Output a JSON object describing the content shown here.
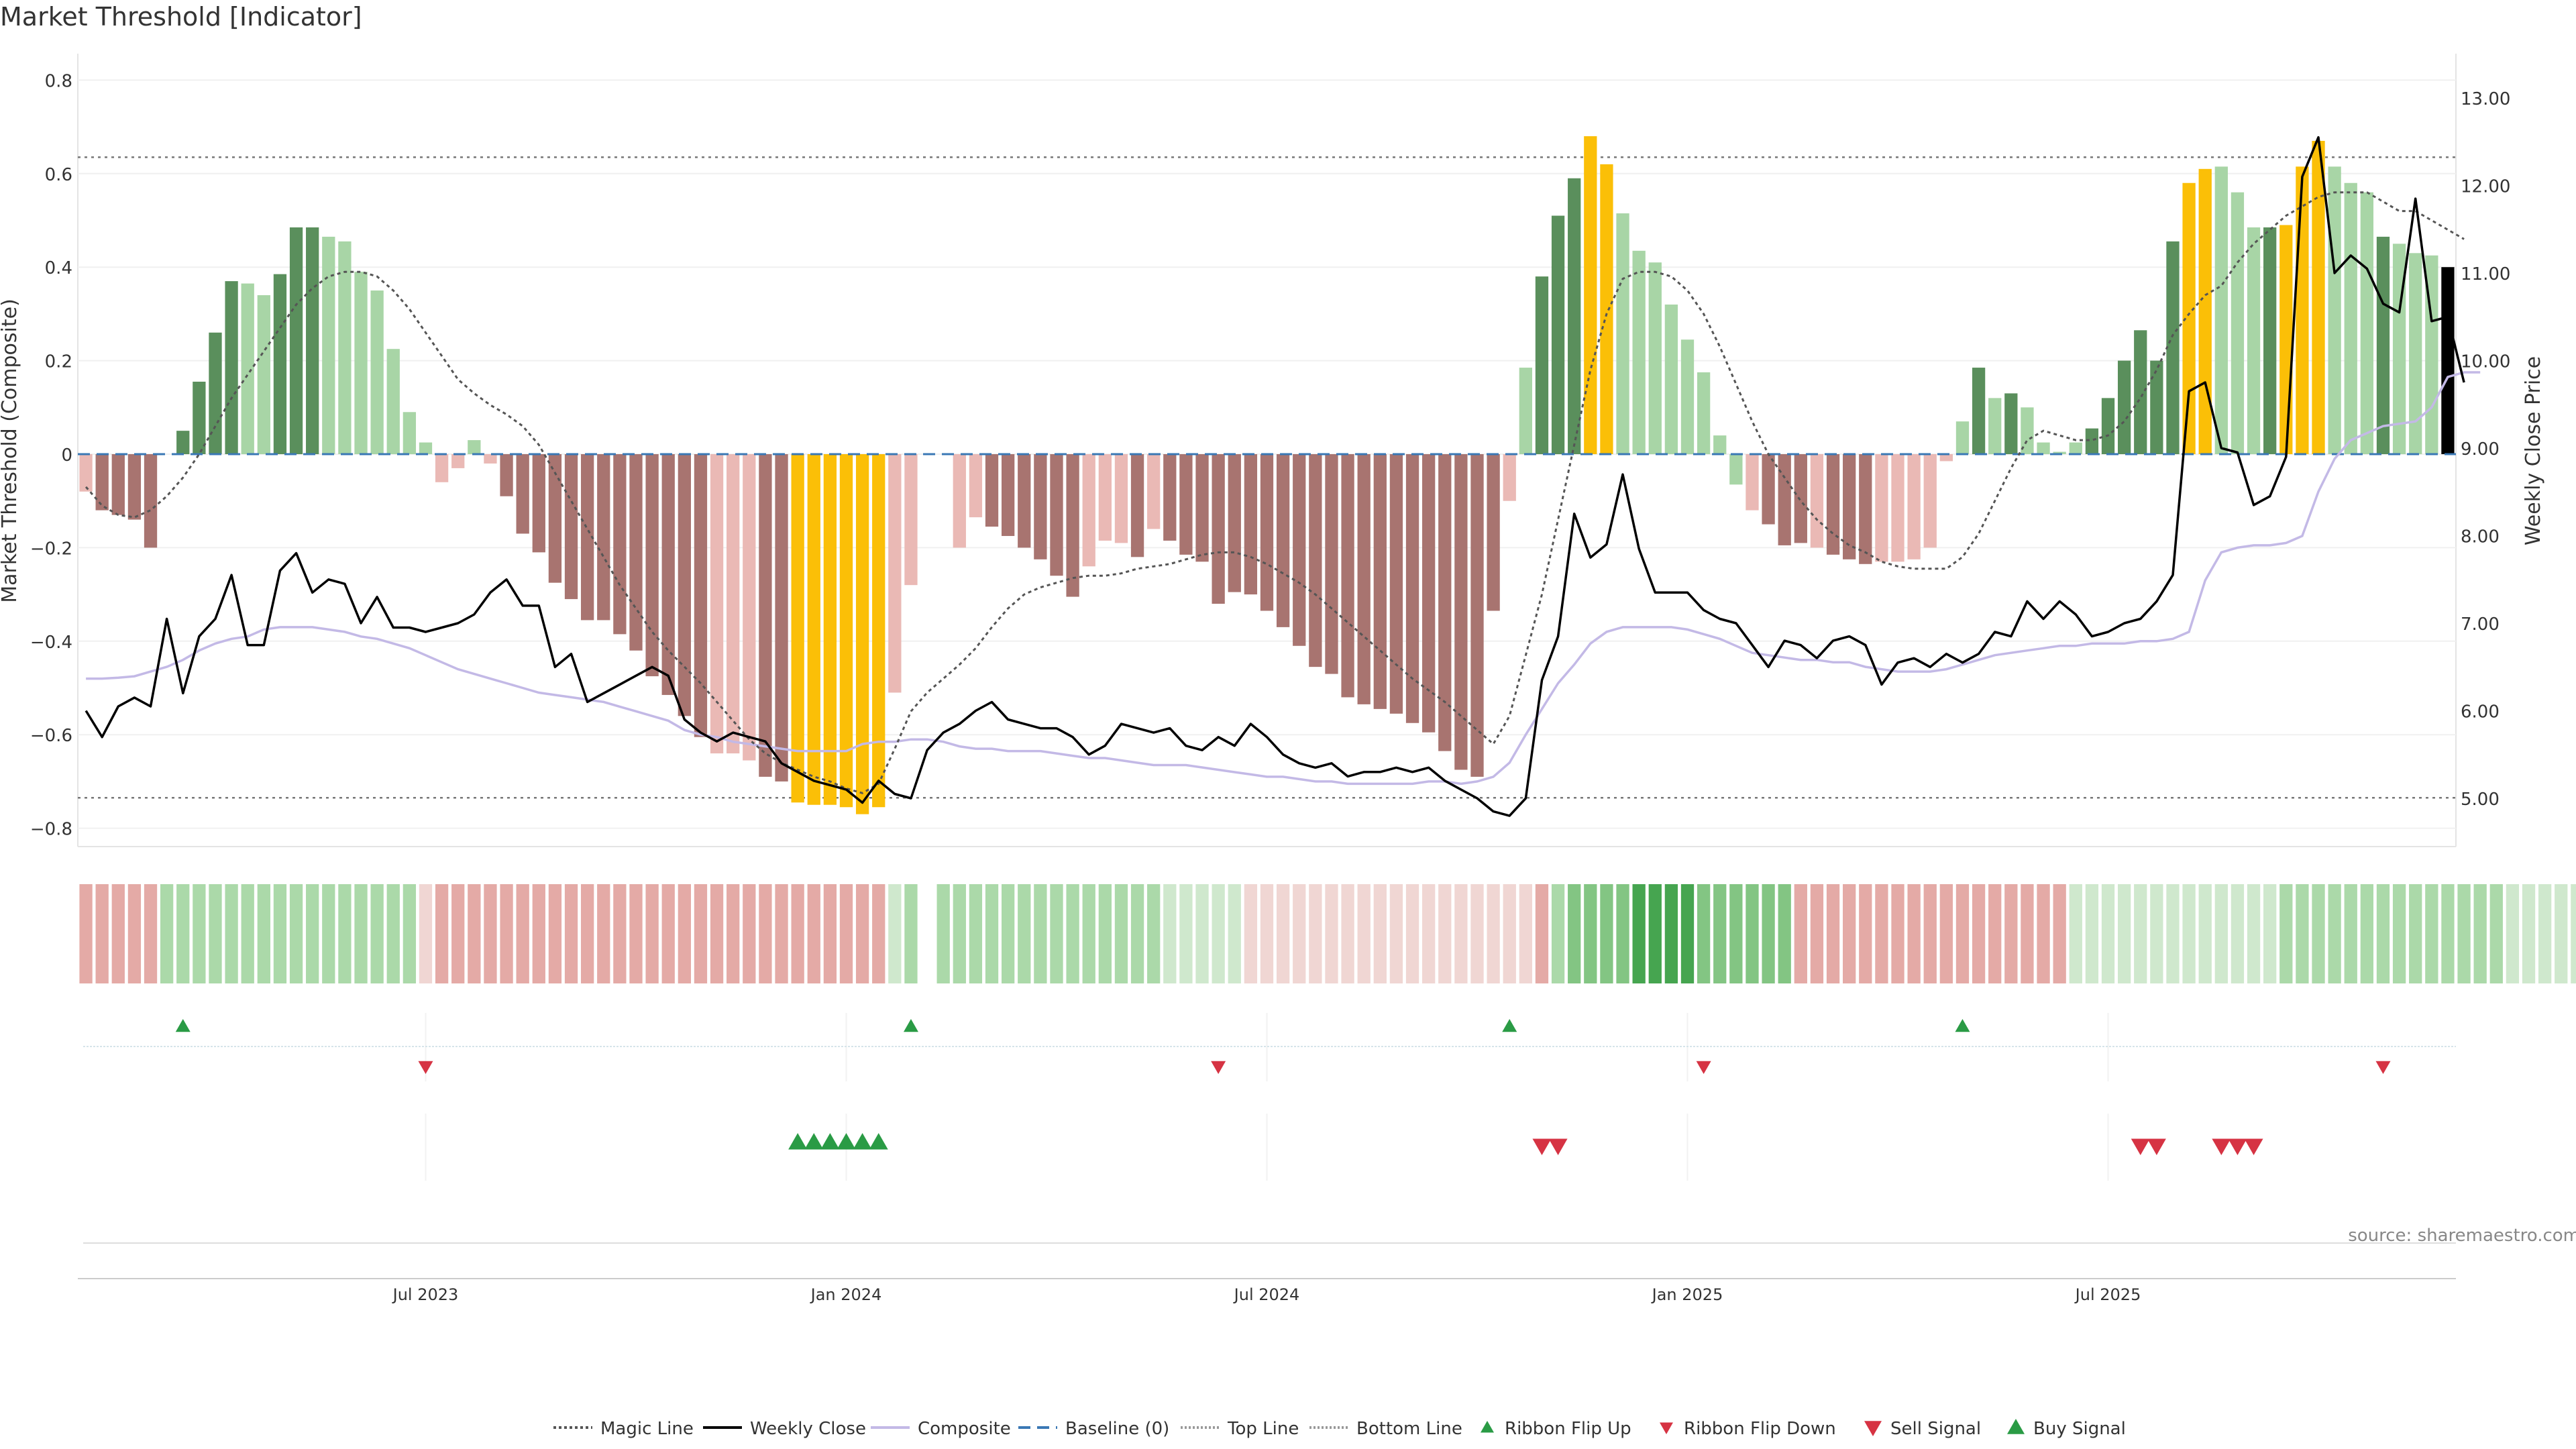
{
  "chart_data": {
    "type": "bar",
    "title": "Market Threshold [Indicator]",
    "ylabel_left": "Market Threshold (Composite)",
    "ylabel_right": "Weekly Close Price",
    "yticks_left": [
      "0.8",
      "0.6",
      "0.4",
      "0.2",
      "0",
      "−0.2",
      "−0.4",
      "−0.6",
      "−0.8"
    ],
    "yticks_right": [
      "13.00",
      "12.00",
      "11.00",
      "10.00",
      "9.00",
      "8.00",
      "7.00",
      "6.00",
      "5.00"
    ],
    "xticks": [
      "Jul 2023",
      "Jan 2024",
      "Jul 2024",
      "Jan 2025",
      "Jul 2025"
    ],
    "ylim_left": [
      -0.85,
      0.85
    ],
    "ylim_right": [
      4.6,
      13.3
    ],
    "top_line": 0.635,
    "bottom_line": -0.735,
    "source": "source: sharemaestro.com",
    "legend": [
      "Magic Line",
      "Weekly Close",
      "Composite",
      "Baseline (0)",
      "Top Line",
      "Bottom Line",
      "Ribbon Flip Up",
      "Ribbon Flip Down",
      "Sell Signal",
      "Buy Signal"
    ],
    "colors": {
      "dark_green": "#5a8f5c",
      "light_green": "#a8d5a6",
      "dark_red": "#a87470",
      "light_red": "#eab9b5",
      "gold": "#fbbf07",
      "close_line": "#000000",
      "composite_line": "#c3b9e6",
      "magic_line": "#555555",
      "baseline": "#3a78b5",
      "signal_green": "#2a9b45",
      "signal_red": "#d63343"
    },
    "bar_values": [
      -0.08,
      -0.12,
      -0.13,
      -0.14,
      -0.2,
      0,
      0.05,
      0.155,
      0.26,
      0.37,
      0.365,
      0.34,
      0.385,
      0.485,
      0.485,
      0.465,
      0.455,
      0.39,
      0.35,
      0.225,
      0.09,
      0.025,
      -0.06,
      -0.03,
      0.03,
      -0.02,
      -0.09,
      -0.17,
      -0.21,
      -0.275,
      -0.31,
      -0.355,
      -0.355,
      -0.385,
      -0.42,
      -0.475,
      -0.515,
      -0.56,
      -0.605,
      -0.64,
      -0.64,
      -0.655,
      -0.69,
      -0.7,
      -0.745,
      -0.75,
      -0.75,
      -0.755,
      -0.77,
      -0.755,
      -0.51,
      -0.28,
      0.01,
      0.02,
      -0.2,
      -0.135,
      -0.155,
      -0.175,
      -0.2,
      -0.225,
      -0.26,
      -0.305,
      -0.24,
      -0.185,
      -0.19,
      -0.22,
      -0.16,
      -0.185,
      -0.215,
      -0.23,
      -0.32,
      -0.295,
      -0.3,
      -0.335,
      -0.37,
      -0.41,
      -0.455,
      -0.47,
      -0.52,
      -0.535,
      -0.545,
      -0.555,
      -0.575,
      -0.595,
      -0.635,
      -0.675,
      -0.69,
      -0.335,
      -0.1,
      0.185,
      0.38,
      0.51,
      0.59,
      0.68,
      0.62,
      0.515,
      0.435,
      0.41,
      0.32,
      0.245,
      0.175,
      0.04,
      -0.065,
      -0.12,
      -0.15,
      -0.195,
      -0.19,
      -0.2,
      -0.215,
      -0.225,
      -0.235,
      -0.23,
      -0.23,
      -0.225,
      -0.2,
      -0.015,
      0.07,
      0.185,
      0.12,
      0.13,
      0.1,
      0.025,
      0.005,
      0.025,
      0.055,
      0.12,
      0.2,
      0.265,
      0.2,
      0.455,
      0.58,
      0.61,
      0.615,
      0.56,
      0.485,
      0.485,
      0.49,
      0.615,
      0.67,
      0.615,
      0.58,
      0.56,
      0.465,
      0.45,
      0.43,
      0.425,
      0.4
    ],
    "bar_types": [
      "lr",
      "dr",
      "dr",
      "dr",
      "dr",
      "x",
      "dg",
      "dg",
      "dg",
      "dg",
      "lg",
      "lg",
      "dg",
      "dg",
      "dg",
      "lg",
      "lg",
      "lg",
      "lg",
      "lg",
      "lg",
      "lg",
      "lr",
      "lr",
      "lg",
      "lr",
      "dr",
      "dr",
      "dr",
      "dr",
      "dr",
      "dr",
      "dr",
      "dr",
      "dr",
      "dr",
      "dr",
      "dr",
      "dr",
      "lr",
      "lr",
      "lr",
      "dr",
      "dr",
      "y",
      "y",
      "y",
      "y",
      "y",
      "y",
      "lr",
      "lr",
      "x",
      "x",
      "lr",
      "lr",
      "dr",
      "dr",
      "dr",
      "dr",
      "dr",
      "dr",
      "lr",
      "lr",
      "lr",
      "dr",
      "lr",
      "dr",
      "dr",
      "dr",
      "dr",
      "dr",
      "dr",
      "dr",
      "dr",
      "dr",
      "dr",
      "dr",
      "dr",
      "dr",
      "dr",
      "dr",
      "dr",
      "dr",
      "dr",
      "dr",
      "dr",
      "dr",
      "lr",
      "lg",
      "dg",
      "dg",
      "dg",
      "y",
      "y",
      "lg",
      "lg",
      "lg",
      "lg",
      "lg",
      "lg",
      "lg",
      "lg",
      "lr",
      "dr",
      "dr",
      "dr",
      "lr",
      "dr",
      "dr",
      "dr",
      "lr",
      "lr",
      "lr",
      "lr",
      "lr",
      "lg",
      "dg",
      "lg",
      "dg",
      "lg",
      "lg",
      "lg",
      "lg",
      "dg",
      "dg",
      "dg",
      "dg",
      "dg",
      "dg",
      "y",
      "y",
      "lg",
      "lg",
      "lg",
      "dg",
      "y",
      "y",
      "y",
      "lg",
      "lg",
      "lg",
      "dg",
      "lg",
      "lg",
      "lg"
    ],
    "weekly_close": [
      6.0,
      5.7,
      6.05,
      6.15,
      6.05,
      7.05,
      6.2,
      6.85,
      7.05,
      7.55,
      6.75,
      6.75,
      7.6,
      7.8,
      7.35,
      7.5,
      7.45,
      7.0,
      7.3,
      6.95,
      6.95,
      6.9,
      6.95,
      7.0,
      7.1,
      7.35,
      7.5,
      7.2,
      7.2,
      6.5,
      6.65,
      6.1,
      6.2,
      6.3,
      6.4,
      6.5,
      6.4,
      5.9,
      5.75,
      5.65,
      5.75,
      5.7,
      5.65,
      5.4,
      5.3,
      5.2,
      5.15,
      5.1,
      4.95,
      5.2,
      5.05,
      5.0,
      5.55,
      5.75,
      5.85,
      6.0,
      6.1,
      5.9,
      5.85,
      5.8,
      5.8,
      5.7,
      5.5,
      5.6,
      5.85,
      5.8,
      5.75,
      5.8,
      5.6,
      5.55,
      5.7,
      5.6,
      5.85,
      5.7,
      5.5,
      5.4,
      5.35,
      5.4,
      5.25,
      5.3,
      5.3,
      5.35,
      5.3,
      5.35,
      5.2,
      5.1,
      5.0,
      4.85,
      4.8,
      5.0,
      6.35,
      6.85,
      8.25,
      7.75,
      7.9,
      8.7,
      7.85,
      7.35,
      7.35,
      7.35,
      7.15,
      7.05,
      7.0,
      6.75,
      6.5,
      6.8,
      6.75,
      6.6,
      6.8,
      6.85,
      6.75,
      6.3,
      6.55,
      6.6,
      6.5,
      6.65,
      6.55,
      6.65,
      6.9,
      6.85,
      7.25,
      7.05,
      7.25,
      7.1,
      6.85,
      6.9,
      7.0,
      7.05,
      7.25,
      7.55,
      9.65,
      9.75,
      9.0,
      8.95,
      8.35,
      8.45,
      8.9,
      12.1,
      12.55,
      11.0,
      11.2,
      11.05,
      10.65,
      10.55,
      11.85,
      10.45,
      10.5,
      9.75
    ],
    "composite": [
      -0.48,
      -0.48,
      -0.478,
      -0.475,
      -0.465,
      -0.455,
      -0.44,
      -0.42,
      -0.405,
      -0.395,
      -0.39,
      -0.375,
      -0.37,
      -0.37,
      -0.37,
      -0.375,
      -0.38,
      -0.39,
      -0.395,
      -0.405,
      -0.415,
      -0.43,
      -0.445,
      -0.46,
      -0.47,
      -0.48,
      -0.49,
      -0.5,
      -0.51,
      -0.515,
      -0.52,
      -0.525,
      -0.53,
      -0.54,
      -0.55,
      -0.56,
      -0.57,
      -0.59,
      -0.6,
      -0.605,
      -0.615,
      -0.62,
      -0.625,
      -0.63,
      -0.635,
      -0.635,
      -0.635,
      -0.635,
      -0.62,
      -0.615,
      -0.615,
      -0.61,
      -0.61,
      -0.615,
      -0.625,
      -0.63,
      -0.63,
      -0.635,
      -0.635,
      -0.635,
      -0.64,
      -0.645,
      -0.65,
      -0.65,
      -0.655,
      -0.66,
      -0.665,
      -0.665,
      -0.665,
      -0.67,
      -0.675,
      -0.68,
      -0.685,
      -0.69,
      -0.69,
      -0.695,
      -0.7,
      -0.7,
      -0.705,
      -0.705,
      -0.705,
      -0.705,
      -0.705,
      -0.7,
      -0.7,
      -0.705,
      -0.7,
      -0.69,
      -0.66,
      -0.6,
      -0.545,
      -0.49,
      -0.45,
      -0.405,
      -0.38,
      -0.37,
      -0.37,
      -0.37,
      -0.37,
      -0.375,
      -0.385,
      -0.395,
      -0.41,
      -0.425,
      -0.43,
      -0.435,
      -0.44,
      -0.44,
      -0.445,
      -0.445,
      -0.455,
      -0.46,
      -0.465,
      -0.465,
      -0.465,
      -0.46,
      -0.45,
      -0.44,
      -0.43,
      -0.425,
      -0.42,
      -0.415,
      -0.41,
      -0.41,
      -0.405,
      -0.405,
      -0.405,
      -0.4,
      -0.4,
      -0.395,
      -0.38,
      -0.27,
      -0.21,
      -0.2,
      -0.195,
      -0.195,
      -0.19,
      -0.175,
      -0.08,
      -0.01,
      0.03,
      0.045,
      0.06,
      0.065,
      0.07,
      0.1,
      0.165,
      0.175,
      0.175
    ],
    "magic_line": [
      -0.07,
      -0.11,
      -0.13,
      -0.135,
      -0.12,
      -0.09,
      -0.05,
      0.0,
      0.06,
      0.12,
      0.17,
      0.22,
      0.27,
      0.32,
      0.355,
      0.38,
      0.39,
      0.39,
      0.38,
      0.35,
      0.31,
      0.26,
      0.21,
      0.16,
      0.13,
      0.105,
      0.085,
      0.06,
      0.02,
      -0.04,
      -0.1,
      -0.16,
      -0.22,
      -0.28,
      -0.33,
      -0.38,
      -0.42,
      -0.455,
      -0.49,
      -0.53,
      -0.57,
      -0.61,
      -0.64,
      -0.66,
      -0.675,
      -0.69,
      -0.7,
      -0.715,
      -0.725,
      -0.705,
      -0.63,
      -0.55,
      -0.51,
      -0.48,
      -0.45,
      -0.415,
      -0.37,
      -0.33,
      -0.3,
      -0.285,
      -0.275,
      -0.265,
      -0.26,
      -0.26,
      -0.255,
      -0.245,
      -0.24,
      -0.235,
      -0.225,
      -0.215,
      -0.21,
      -0.21,
      -0.22,
      -0.235,
      -0.255,
      -0.275,
      -0.3,
      -0.33,
      -0.36,
      -0.39,
      -0.42,
      -0.45,
      -0.48,
      -0.505,
      -0.53,
      -0.56,
      -0.59,
      -0.62,
      -0.56,
      -0.43,
      -0.3,
      -0.14,
      0.02,
      0.18,
      0.3,
      0.375,
      0.39,
      0.39,
      0.38,
      0.35,
      0.3,
      0.23,
      0.15,
      0.07,
      0.0,
      -0.05,
      -0.1,
      -0.14,
      -0.17,
      -0.195,
      -0.21,
      -0.23,
      -0.24,
      -0.245,
      -0.245,
      -0.245,
      -0.22,
      -0.17,
      -0.1,
      -0.03,
      0.03,
      0.05,
      0.04,
      0.03,
      0.03,
      0.04,
      0.07,
      0.12,
      0.18,
      0.255,
      0.3,
      0.34,
      0.36,
      0.41,
      0.45,
      0.48,
      0.51,
      0.53,
      0.55,
      0.56,
      0.56,
      0.56,
      0.54,
      0.52,
      0.52,
      0.5,
      0.48,
      0.46
    ],
    "ribbon_levels": [
      -2,
      -2,
      -2,
      -2,
      -2,
      2,
      2,
      2,
      2,
      2,
      2,
      2,
      2,
      2,
      2,
      2,
      2,
      2,
      2,
      2,
      2,
      -1,
      -2,
      -2,
      -2,
      -2,
      -2,
      -2,
      -2,
      -2,
      -2,
      -2,
      -2,
      -2,
      -2,
      -2,
      -2,
      -2,
      -2,
      -2,
      -2,
      -2,
      -2,
      -2,
      -2,
      -2,
      -2,
      -2,
      -2,
      -2,
      1,
      2,
      0,
      2,
      2,
      2,
      2,
      2,
      2,
      2,
      2,
      2,
      2,
      2,
      2,
      2,
      2,
      1,
      1,
      1,
      1,
      1,
      -1,
      -1,
      -1,
      -1,
      -1,
      -1,
      -1,
      -1,
      -1,
      -1,
      -1,
      -1,
      -1,
      -1,
      -1,
      -1,
      -1,
      -1,
      -2,
      2,
      3,
      3,
      3,
      3,
      4,
      4,
      4,
      4,
      3,
      3,
      3,
      3,
      3,
      3,
      -2,
      -2,
      -2,
      -2,
      -2,
      -2,
      -2,
      -2,
      -2,
      -2,
      -2,
      -2,
      -2,
      -2,
      -2,
      -2,
      -2,
      1,
      1,
      1,
      1,
      1,
      1,
      1,
      1,
      1,
      1,
      1,
      1,
      1,
      2,
      2,
      2,
      2,
      2,
      2,
      2,
      2,
      2,
      2,
      2,
      2,
      2,
      2,
      1,
      1,
      1,
      1,
      1,
      -1
    ],
    "ribbon_flip_up": [
      6,
      51,
      88,
      116
    ],
    "ribbon_flip_down": [
      21,
      70,
      100,
      142
    ],
    "buy_signal": [
      44,
      45,
      46,
      47,
      48,
      49
    ],
    "sell_signal": [
      90,
      91,
      127,
      128,
      132,
      133,
      134
    ]
  }
}
